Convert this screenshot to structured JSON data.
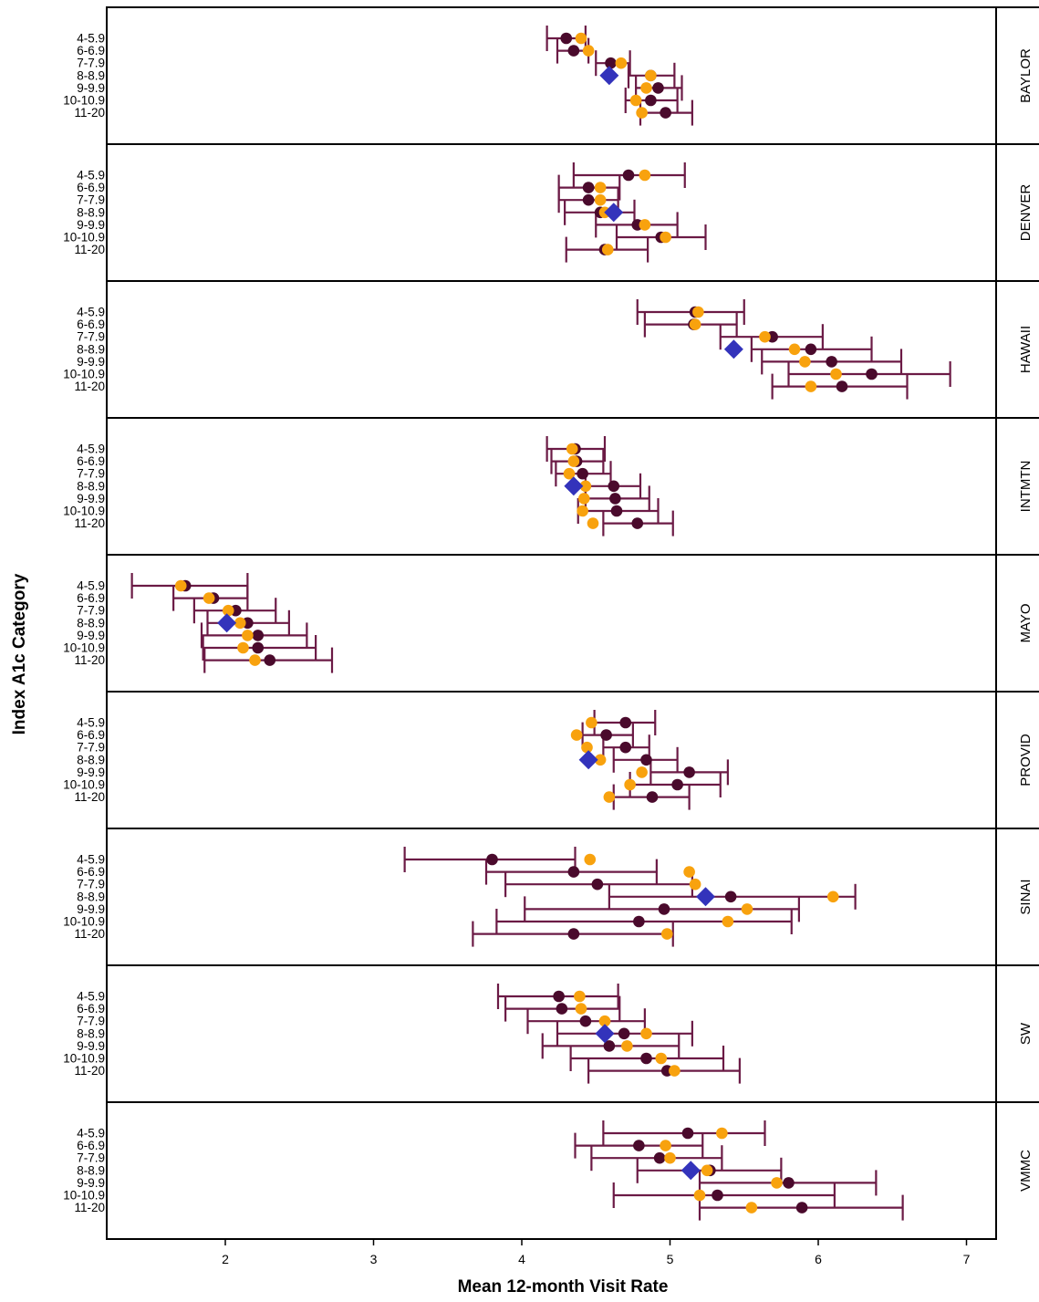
{
  "chart_data": {
    "type": "scatter",
    "xlabel": "Mean 12-month Visit Rate",
    "ylabel": "Index A1c Category",
    "xlim": [
      1.2,
      7.2
    ],
    "xticks": [
      2,
      3,
      4,
      5,
      6,
      7
    ],
    "categories": [
      "4-5.9",
      "6-6.9",
      "7-7.9",
      "8-8.9",
      "9-9.9",
      "10-10.9",
      "11-20"
    ],
    "colors": {
      "dark": "#4a0a2c",
      "orange": "#f8a20e",
      "diamond": "#3333bb",
      "errorbar": "#6b1a45"
    },
    "panels": [
      {
        "name": "BAYLOR",
        "dark": [
          4.3,
          4.35,
          4.6,
          4.87,
          4.92,
          4.87,
          4.97
        ],
        "dark_ci": [
          [
            4.17,
            4.43
          ],
          [
            4.24,
            4.45
          ],
          [
            4.5,
            4.73
          ],
          [
            4.72,
            5.03
          ],
          [
            4.77,
            5.08
          ],
          [
            4.7,
            5.05
          ],
          [
            4.8,
            5.15
          ]
        ],
        "orange": [
          4.4,
          4.45,
          4.67,
          4.87,
          4.84,
          4.77,
          4.81
        ],
        "diamond": {
          "category": "8-8.9",
          "value": 4.59
        }
      },
      {
        "name": "DENVER",
        "dark": [
          4.72,
          4.45,
          4.45,
          4.53,
          4.78,
          4.94,
          4.56
        ],
        "dark_ci": [
          [
            4.35,
            5.1
          ],
          [
            4.25,
            4.66
          ],
          [
            4.25,
            4.65
          ],
          [
            4.29,
            4.76
          ],
          [
            4.5,
            5.05
          ],
          [
            4.64,
            5.24
          ],
          [
            4.3,
            4.85
          ]
        ],
        "orange": [
          4.83,
          4.53,
          4.53,
          4.56,
          4.83,
          4.97,
          4.58
        ],
        "diamond": {
          "category": "8-8.9",
          "value": 4.62
        }
      },
      {
        "name": "HAWAII",
        "dark": [
          5.17,
          5.16,
          5.69,
          5.95,
          6.09,
          6.36,
          6.16
        ],
        "dark_ci": [
          [
            4.78,
            5.5
          ],
          [
            4.83,
            5.45
          ],
          [
            5.34,
            6.03
          ],
          [
            5.55,
            6.36
          ],
          [
            5.62,
            6.56
          ],
          [
            5.8,
            6.89
          ],
          [
            5.69,
            6.6
          ]
        ],
        "orange": [
          5.19,
          5.17,
          5.64,
          5.84,
          5.91,
          6.12,
          5.95
        ],
        "diamond": {
          "category": "8-8.9",
          "value": 5.43
        }
      },
      {
        "name": "INTMTN",
        "dark": [
          4.36,
          4.37,
          4.41,
          4.62,
          4.63,
          4.64,
          4.78
        ],
        "dark_ci": [
          [
            4.17,
            4.56
          ],
          [
            4.2,
            4.55
          ],
          [
            4.23,
            4.6
          ],
          [
            4.43,
            4.8
          ],
          [
            4.43,
            4.86
          ],
          [
            4.38,
            4.92
          ],
          [
            4.55,
            5.02
          ]
        ],
        "orange": [
          4.34,
          4.35,
          4.32,
          4.43,
          4.42,
          4.41,
          4.48
        ],
        "diamond": {
          "category": "8-8.9",
          "value": 4.35
        }
      },
      {
        "name": "MAYO",
        "dark": [
          1.73,
          1.92,
          2.07,
          2.15,
          2.22,
          2.22,
          2.3
        ],
        "dark_ci": [
          [
            1.37,
            2.15
          ],
          [
            1.65,
            2.15
          ],
          [
            1.79,
            2.34
          ],
          [
            1.88,
            2.43
          ],
          [
            1.84,
            2.55
          ],
          [
            1.85,
            2.61
          ],
          [
            1.86,
            2.72
          ]
        ],
        "orange": [
          1.7,
          1.89,
          2.02,
          2.1,
          2.15,
          2.12,
          2.2
        ],
        "diamond": {
          "category": "8-8.9",
          "value": 2.01
        }
      },
      {
        "name": "PROVID",
        "dark": [
          4.7,
          4.57,
          4.7,
          4.84,
          5.13,
          5.05,
          4.88
        ],
        "dark_ci": [
          [
            4.49,
            4.9
          ],
          [
            4.41,
            4.75
          ],
          [
            4.55,
            4.86
          ],
          [
            4.62,
            5.05
          ],
          [
            4.87,
            5.39
          ],
          [
            4.73,
            5.34
          ],
          [
            4.62,
            5.13
          ]
        ],
        "orange": [
          4.47,
          4.37,
          4.44,
          4.53,
          4.81,
          4.73,
          4.59
        ],
        "diamond": {
          "category": "8-8.9",
          "value": 4.45
        }
      },
      {
        "name": "SINAI",
        "dark": [
          3.8,
          4.35,
          4.51,
          5.41,
          4.96,
          4.79,
          4.35
        ],
        "dark_ci": [
          [
            3.21,
            4.36
          ],
          [
            3.76,
            4.91
          ],
          [
            3.89,
            5.15
          ],
          [
            4.59,
            6.25
          ],
          [
            4.02,
            5.87
          ],
          [
            3.83,
            5.82
          ],
          [
            3.67,
            5.02
          ]
        ],
        "orange": [
          4.46,
          5.13,
          5.17,
          6.1,
          5.52,
          5.39,
          4.98
        ],
        "diamond": {
          "category": "8-8.9",
          "value": 5.24
        }
      },
      {
        "name": "SW",
        "dark": [
          4.25,
          4.27,
          4.43,
          4.69,
          4.59,
          4.84,
          4.98
        ],
        "dark_ci": [
          [
            3.84,
            4.65
          ],
          [
            3.89,
            4.66
          ],
          [
            4.04,
            4.83
          ],
          [
            4.24,
            5.15
          ],
          [
            4.14,
            5.06
          ],
          [
            4.33,
            5.36
          ],
          [
            4.45,
            5.47
          ]
        ],
        "orange": [
          4.39,
          4.4,
          4.56,
          4.84,
          4.71,
          4.94,
          5.03
        ],
        "diamond": {
          "category": "8-8.9",
          "value": 4.56
        }
      },
      {
        "name": "VMMC",
        "dark": [
          5.12,
          4.79,
          4.93,
          5.27,
          5.8,
          5.32,
          5.89
        ],
        "dark_ci": [
          [
            4.55,
            5.64
          ],
          [
            4.36,
            5.22
          ],
          [
            4.47,
            5.35
          ],
          [
            4.78,
            5.75
          ],
          [
            5.2,
            6.39
          ],
          [
            4.62,
            6.11
          ],
          [
            5.2,
            6.57
          ]
        ],
        "orange": [
          5.35,
          4.97,
          5.0,
          5.25,
          5.72,
          5.2,
          5.55
        ],
        "diamond": {
          "category": "8-8.9",
          "value": 5.14
        }
      }
    ]
  }
}
